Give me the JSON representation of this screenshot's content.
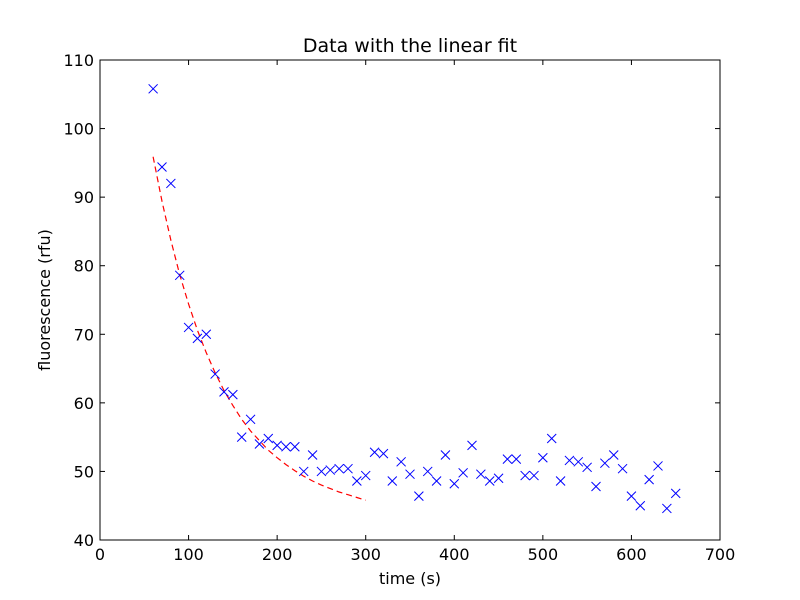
{
  "chart_data": {
    "type": "scatter",
    "title": "Data with the linear fit",
    "xlabel": "time (s)",
    "ylabel": "fluorescence (rfu)",
    "xlim": [
      0,
      700
    ],
    "ylim": [
      40,
      110
    ],
    "xticks": [
      0,
      100,
      200,
      300,
      400,
      500,
      600,
      700
    ],
    "yticks": [
      40,
      50,
      60,
      70,
      80,
      90,
      100,
      110
    ],
    "grid": false,
    "series": [
      {
        "style": "markers",
        "marker": "x",
        "color": "#0000ff",
        "x": [
          60,
          70,
          80,
          90,
          100,
          110,
          120,
          130,
          140,
          150,
          160,
          170,
          180,
          190,
          200,
          210,
          220,
          230,
          240,
          250,
          260,
          270,
          280,
          290,
          300,
          310,
          320,
          330,
          340,
          350,
          360,
          370,
          380,
          390,
          400,
          410,
          420,
          430,
          440,
          450,
          460,
          470,
          480,
          490,
          500,
          510,
          520,
          530,
          540,
          550,
          560,
          570,
          580,
          590,
          600,
          610,
          620,
          630,
          640,
          650
        ],
        "y": [
          105.8,
          94.4,
          92.0,
          78.6,
          71.0,
          69.4,
          70.0,
          64.2,
          61.6,
          61.2,
          55.0,
          57.6,
          54.0,
          54.8,
          53.8,
          53.6,
          53.6,
          50.0,
          52.4,
          50.0,
          50.2,
          50.4,
          50.4,
          48.6,
          49.4,
          52.8,
          52.6,
          48.6,
          51.4,
          49.6,
          46.4,
          50.0,
          48.6,
          52.4,
          48.2,
          49.8,
          53.8,
          49.6,
          48.6,
          49.0,
          51.8,
          51.8,
          49.4,
          49.4,
          52.0,
          54.8,
          48.6,
          51.6,
          51.4,
          50.6,
          47.8,
          51.2,
          52.4,
          50.4,
          46.4,
          45.0,
          48.8,
          50.8,
          44.6,
          46.8
        ]
      },
      {
        "style": "dashed-line",
        "color": "#ff0000",
        "x": [
          60,
          70,
          80,
          90,
          100,
          110,
          120,
          130,
          140,
          150,
          160,
          170,
          180,
          190,
          200,
          210,
          220,
          230,
          240,
          250,
          260,
          270,
          280,
          290,
          300
        ],
        "y": [
          95.9,
          89.4,
          83.7,
          78.7,
          74.4,
          70.6,
          67.3,
          64.4,
          61.8,
          59.6,
          57.6,
          55.9,
          54.5,
          53.1,
          52.0,
          51.0,
          50.1,
          49.3,
          48.6,
          48.0,
          47.5,
          47.0,
          46.6,
          46.2,
          45.8
        ]
      }
    ]
  }
}
